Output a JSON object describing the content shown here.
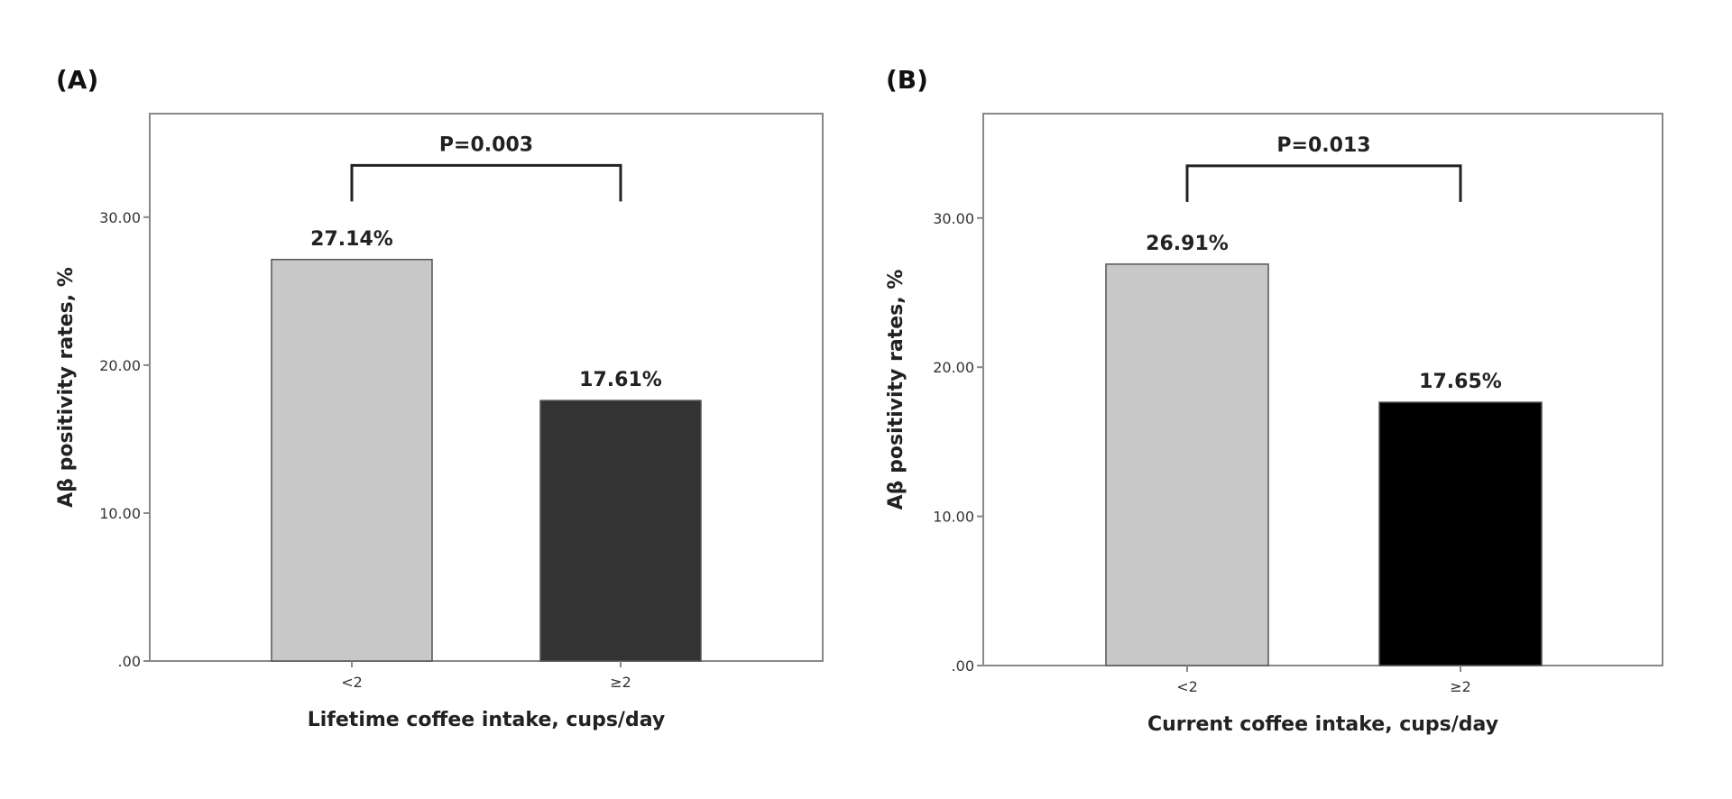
{
  "chart_data": [
    {
      "panel": "(A)",
      "type": "bar",
      "categories": [
        "<2",
        "≥2"
      ],
      "values": [
        27.14,
        17.61
      ],
      "data_labels": [
        "27.14%",
        "17.61%"
      ],
      "bar_colors": [
        "#c8c8c8",
        "#333333"
      ],
      "xlabel": "Lifetime coffee intake, cups/day",
      "ylabel": "Aβ positivity rates, %",
      "ylim": [
        0,
        37
      ],
      "yticks": [
        0,
        10,
        20,
        30
      ],
      "ytick_labels": [
        ".00",
        "10.00",
        "20.00",
        "30.00"
      ],
      "significance": {
        "label": "P=0.003",
        "between": [
          0,
          1
        ],
        "level": 33.5
      },
      "grid": false
    },
    {
      "panel": "(B)",
      "type": "bar",
      "categories": [
        "<2",
        "≥2"
      ],
      "values": [
        26.91,
        17.65
      ],
      "data_labels": [
        "26.91%",
        "17.65%"
      ],
      "bar_colors": [
        "#c8c8c8",
        "#000000"
      ],
      "xlabel": "Current coffee intake, cups/day",
      "ylabel": "Aβ positivity rates, %",
      "ylim": [
        0,
        37
      ],
      "yticks": [
        0,
        10,
        20,
        30
      ],
      "ytick_labels": [
        ".00",
        "10.00",
        "20.00",
        "30.00"
      ],
      "significance": {
        "label": "P=0.013",
        "between": [
          0,
          1
        ],
        "level": 33.5
      },
      "grid": false
    }
  ]
}
